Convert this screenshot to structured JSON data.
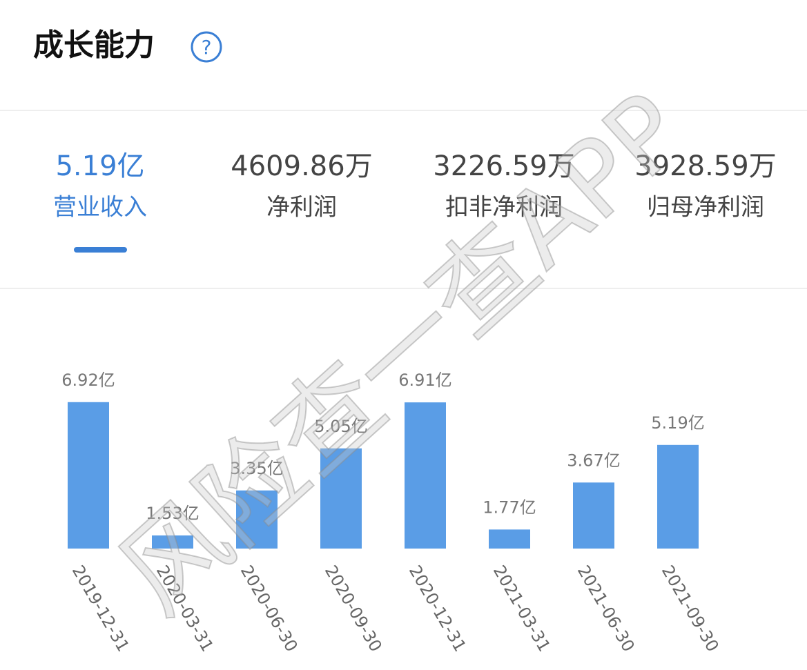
{
  "header": {
    "title": "成长能力",
    "help_icon": "?"
  },
  "tabs": [
    {
      "value": "5.19亿",
      "label": "营业收入",
      "active": true
    },
    {
      "value": "4609.86万",
      "label": "净利润",
      "active": false
    },
    {
      "value": "3226.59万",
      "label": "扣非净利润",
      "active": false
    },
    {
      "value": "3928.59万",
      "label": "归母净利润",
      "active": false
    }
  ],
  "watermark": "风险查一查APP",
  "chart_data": {
    "type": "bar",
    "categories": [
      "2019-12-31",
      "2020-03-31",
      "2020-06-30",
      "2020-09-30",
      "2020-12-31",
      "2021-03-31",
      "2021-06-30",
      "2021-09-30"
    ],
    "values": [
      6.92,
      1.53,
      3.35,
      5.05,
      6.91,
      1.77,
      3.67,
      5.19
    ],
    "value_labels": [
      "6.92亿",
      "1.53亿",
      "3.35亿",
      "5.05亿",
      "6.91亿",
      "1.77亿",
      "3.67亿",
      "5.19亿"
    ],
    "color": "#5a9de6",
    "ylim": [
      1,
      7.5
    ]
  }
}
